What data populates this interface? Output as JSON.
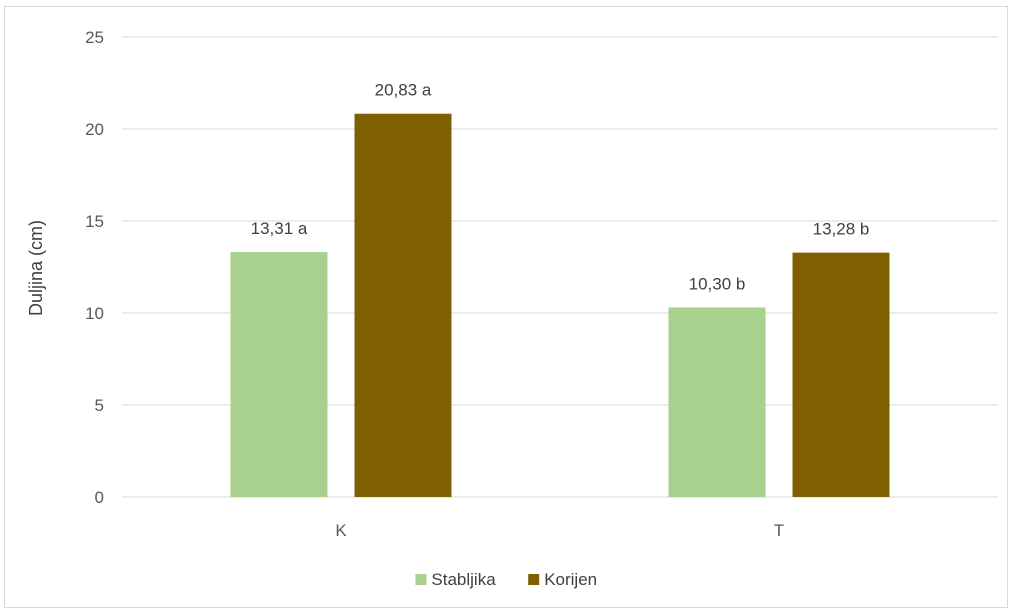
{
  "chart_data": {
    "type": "bar",
    "categories": [
      "K",
      "T"
    ],
    "series": [
      {
        "name": "Stabljika",
        "color": "#a9d18e",
        "values": [
          13.31,
          10.3
        ],
        "labels": [
          "13,31 a",
          "10,30 b"
        ]
      },
      {
        "name": "Korijen",
        "color": "#7f6000",
        "values": [
          20.83,
          13.28
        ],
        "labels": [
          "20,83 a",
          "13,28 b"
        ]
      }
    ],
    "ylabel": "Duljina (cm)",
    "xlabel": "",
    "ylim": [
      0,
      25
    ],
    "yticks": [
      "0",
      "5",
      "10",
      "15",
      "20",
      "25"
    ],
    "grid": true,
    "legend_position": "bottom"
  }
}
